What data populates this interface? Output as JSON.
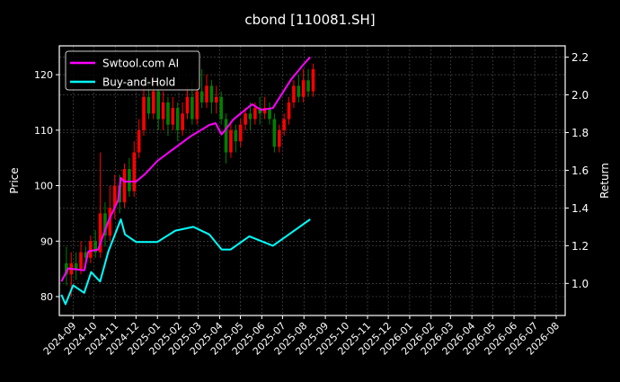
{
  "chart_data": {
    "type": "candlestick+line",
    "title": "cbond [110081.SH]",
    "ylabel_left": "Price",
    "ylabel_right": "Return",
    "ylim_left": [
      76.6,
      125.2
    ],
    "ylim_right": [
      0.83,
      2.26
    ],
    "xlim": [
      "2024-08-12",
      "2026-08-14"
    ],
    "yticks_left": [
      80,
      90,
      100,
      110,
      120
    ],
    "yticks_right": [
      "1.0",
      "1.2",
      "1.4",
      "1.6",
      "1.8",
      "2.0",
      "2.2"
    ],
    "xticks": [
      "2024-09",
      "2024-10",
      "2024-11",
      "2024-12",
      "2025-01",
      "2025-02",
      "2025-03",
      "2025-04",
      "2025-05",
      "2025-06",
      "2025-07",
      "2025-08",
      "2025-09",
      "2025-10",
      "2025-11",
      "2025-12",
      "2026-01",
      "2026-02",
      "2026-03",
      "2026-04",
      "2026-05",
      "2026-06",
      "2026-07",
      "2026-08"
    ],
    "grid": true,
    "legend_placement": "upper-left",
    "colors": {
      "background": "#000000",
      "up": "#ff0000",
      "down": "#008000",
      "grid": "#555555"
    },
    "candles": {
      "dates": [
        "2024-08-19",
        "2024-08-26",
        "2024-09-02",
        "2024-09-09",
        "2024-09-16",
        "2024-09-23",
        "2024-09-30",
        "2024-10-07",
        "2024-10-14",
        "2024-10-21",
        "2024-10-28",
        "2024-11-04",
        "2024-11-11",
        "2024-11-18",
        "2024-11-25",
        "2024-12-02",
        "2024-12-09",
        "2024-12-16",
        "2024-12-23",
        "2024-12-30",
        "2025-01-06",
        "2025-01-13",
        "2025-01-20",
        "2025-01-27",
        "2025-02-03",
        "2025-02-10",
        "2025-02-17",
        "2025-02-24",
        "2025-03-03",
        "2025-03-10",
        "2025-03-17",
        "2025-03-24",
        "2025-03-31",
        "2025-04-07",
        "2025-04-14",
        "2025-04-21",
        "2025-04-28",
        "2025-05-05",
        "2025-05-12",
        "2025-05-19",
        "2025-05-26",
        "2025-06-02",
        "2025-06-09",
        "2025-06-16",
        "2025-06-23",
        "2025-06-30",
        "2025-07-07",
        "2025-07-14",
        "2025-07-21",
        "2025-07-28",
        "2025-08-04",
        "2025-08-11"
      ],
      "open": [
        86,
        84,
        86,
        85,
        88,
        87,
        90,
        88,
        95,
        91,
        96,
        100,
        97,
        103,
        99,
        106,
        110,
        116,
        113,
        117,
        112,
        115,
        111,
        114,
        110,
        113,
        116,
        112,
        117,
        115,
        118,
        115,
        116,
        112,
        106,
        110,
        108,
        111,
        113,
        112,
        114,
        113,
        114,
        112,
        107,
        110,
        112,
        115,
        118,
        116,
        119,
        117
      ],
      "high": [
        89,
        88,
        88,
        90,
        89,
        91,
        92,
        106,
        97,
        100,
        102,
        102,
        104,
        105,
        108,
        112,
        118,
        119,
        120,
        118,
        117,
        116,
        116,
        115,
        115,
        118,
        119,
        119,
        121,
        120,
        119,
        118,
        117,
        113,
        111,
        111,
        112,
        114,
        115,
        115,
        116,
        116,
        115,
        113,
        111,
        113,
        116,
        119,
        120,
        121,
        121,
        122
      ],
      "low": [
        82,
        80,
        83,
        84,
        85,
        86,
        87,
        87,
        89,
        90,
        94,
        95,
        96,
        98,
        98,
        105,
        109,
        112,
        112,
        110,
        110,
        109,
        110,
        108,
        109,
        112,
        111,
        111,
        114,
        114,
        113,
        113,
        111,
        104,
        105,
        106,
        107,
        110,
        110,
        111,
        111,
        112,
        111,
        106,
        106,
        109,
        111,
        114,
        115,
        115,
        116,
        116
      ],
      "close": [
        84,
        86,
        85,
        88,
        87,
        90,
        88,
        95,
        91,
        96,
        100,
        97,
        103,
        99,
        106,
        110,
        116,
        113,
        117,
        112,
        115,
        111,
        114,
        110,
        113,
        116,
        112,
        117,
        115,
        118,
        115,
        116,
        112,
        106,
        110,
        108,
        111,
        113,
        112,
        114,
        113,
        114,
        112,
        107,
        110,
        112,
        115,
        118,
        116,
        119,
        117,
        121
      ]
    },
    "series": [
      {
        "name": "Swtool.com AI",
        "color": "#ff00ff",
        "axis": "right",
        "x": [
          "2024-08-15",
          "2024-08-25",
          "2024-09-17",
          "2024-09-23",
          "2024-10-07",
          "2024-10-22",
          "2024-11-05",
          "2024-11-09",
          "2024-11-14",
          "2024-12-01",
          "2024-12-14",
          "2025-01-01",
          "2025-01-23",
          "2025-02-18",
          "2025-03-17",
          "2025-03-26",
          "2025-04-04",
          "2025-04-21",
          "2025-05-18",
          "2025-05-31",
          "2025-06-17",
          "2025-07-13",
          "2025-07-31",
          "2025-08-10"
        ],
        "y": [
          1.01,
          1.08,
          1.07,
          1.17,
          1.18,
          1.33,
          1.44,
          1.56,
          1.54,
          1.54,
          1.58,
          1.65,
          1.71,
          1.78,
          1.84,
          1.85,
          1.79,
          1.87,
          1.95,
          1.92,
          1.93,
          2.08,
          2.16,
          2.2
        ]
      },
      {
        "name": "Buy-and-Hold",
        "color": "#00ffff",
        "axis": "right",
        "x": [
          "2024-08-15",
          "2024-08-21",
          "2024-09-01",
          "2024-09-17",
          "2024-09-27",
          "2024-10-10",
          "2024-10-22",
          "2024-11-09",
          "2024-11-15",
          "2024-12-01",
          "2025-01-01",
          "2025-01-27",
          "2025-02-22",
          "2025-03-17",
          "2025-04-04",
          "2025-04-17",
          "2025-05-14",
          "2025-06-17",
          "2025-07-18",
          "2025-08-10"
        ],
        "y": [
          0.94,
          0.89,
          0.99,
          0.95,
          1.06,
          1.01,
          1.17,
          1.34,
          1.26,
          1.22,
          1.22,
          1.28,
          1.3,
          1.26,
          1.18,
          1.18,
          1.25,
          1.2,
          1.28,
          1.34
        ]
      }
    ]
  }
}
